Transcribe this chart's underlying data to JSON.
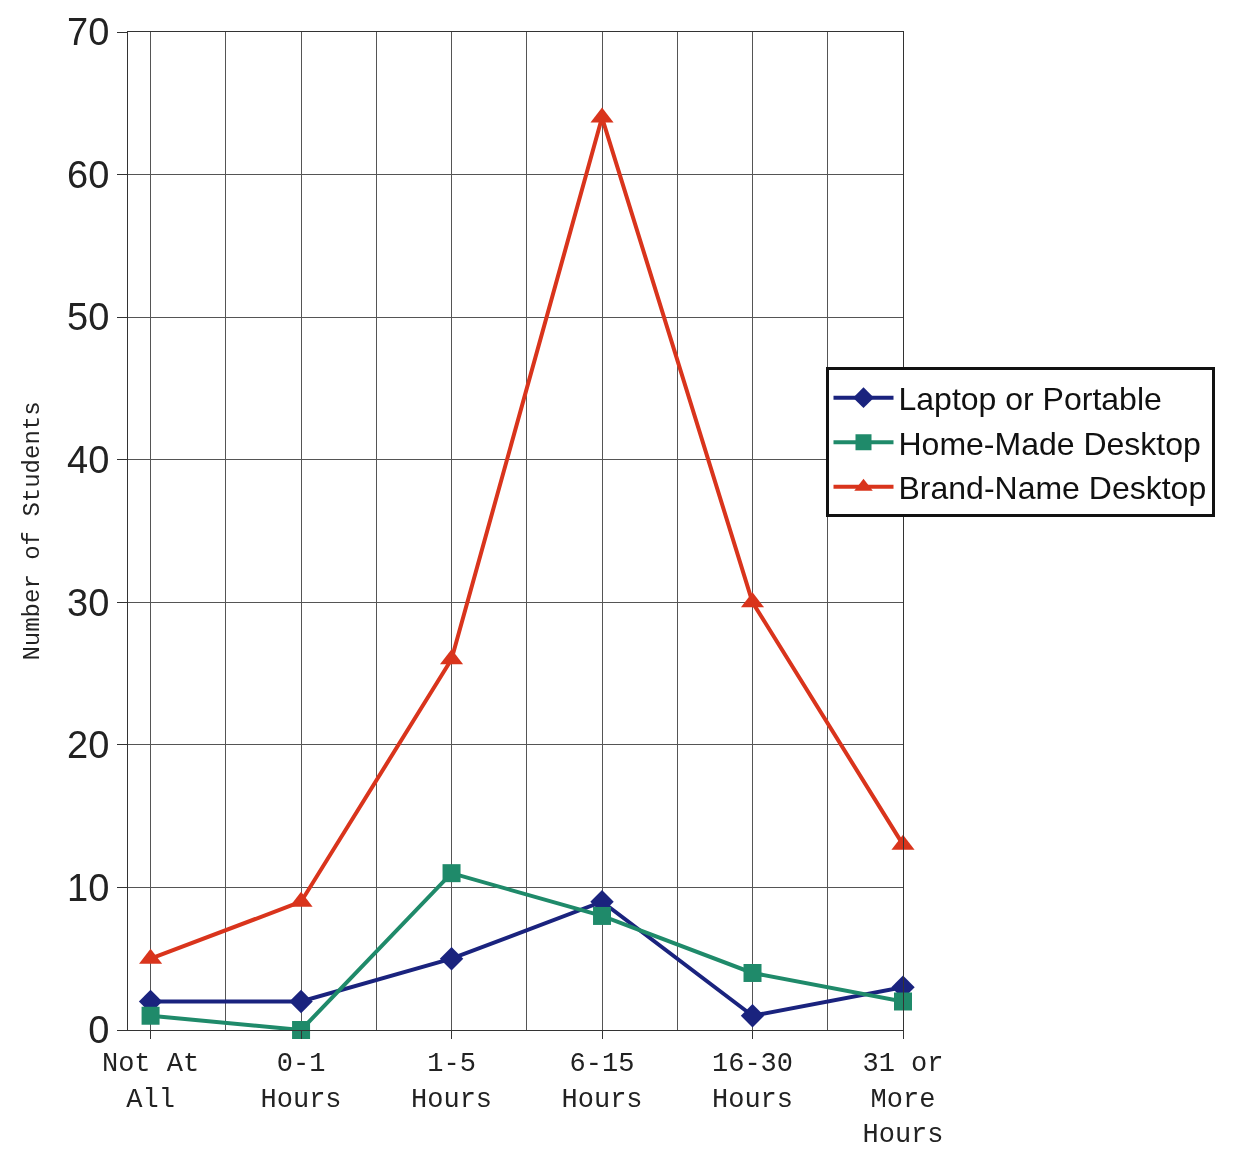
{
  "chart_data": {
    "type": "line",
    "ylabel": "Number of Students",
    "categories": [
      "Not At All",
      "0-1 Hours",
      "1-5 Hours",
      "6-15 Hours",
      "16-30 Hours",
      "31 or More Hours"
    ],
    "series": [
      {
        "name": "Laptop or Portable",
        "color": "#1a237e",
        "marker": "diamond",
        "values": [
          2,
          2,
          5,
          9,
          1,
          3
        ]
      },
      {
        "name": "Home-Made Desktop",
        "color": "#1f8a6a",
        "marker": "square",
        "values": [
          1,
          0,
          11,
          8,
          4,
          2
        ]
      },
      {
        "name": "Brand-Name Desktop",
        "color": "#d9341c",
        "marker": "triangle",
        "values": [
          5,
          9,
          26,
          64,
          30,
          13
        ]
      }
    ],
    "ylim": [
      0,
      70
    ],
    "yticks": [
      0,
      10,
      20,
      30,
      40,
      50,
      60,
      70
    ],
    "grid": true,
    "legend": "right",
    "line_style": "solid"
  }
}
